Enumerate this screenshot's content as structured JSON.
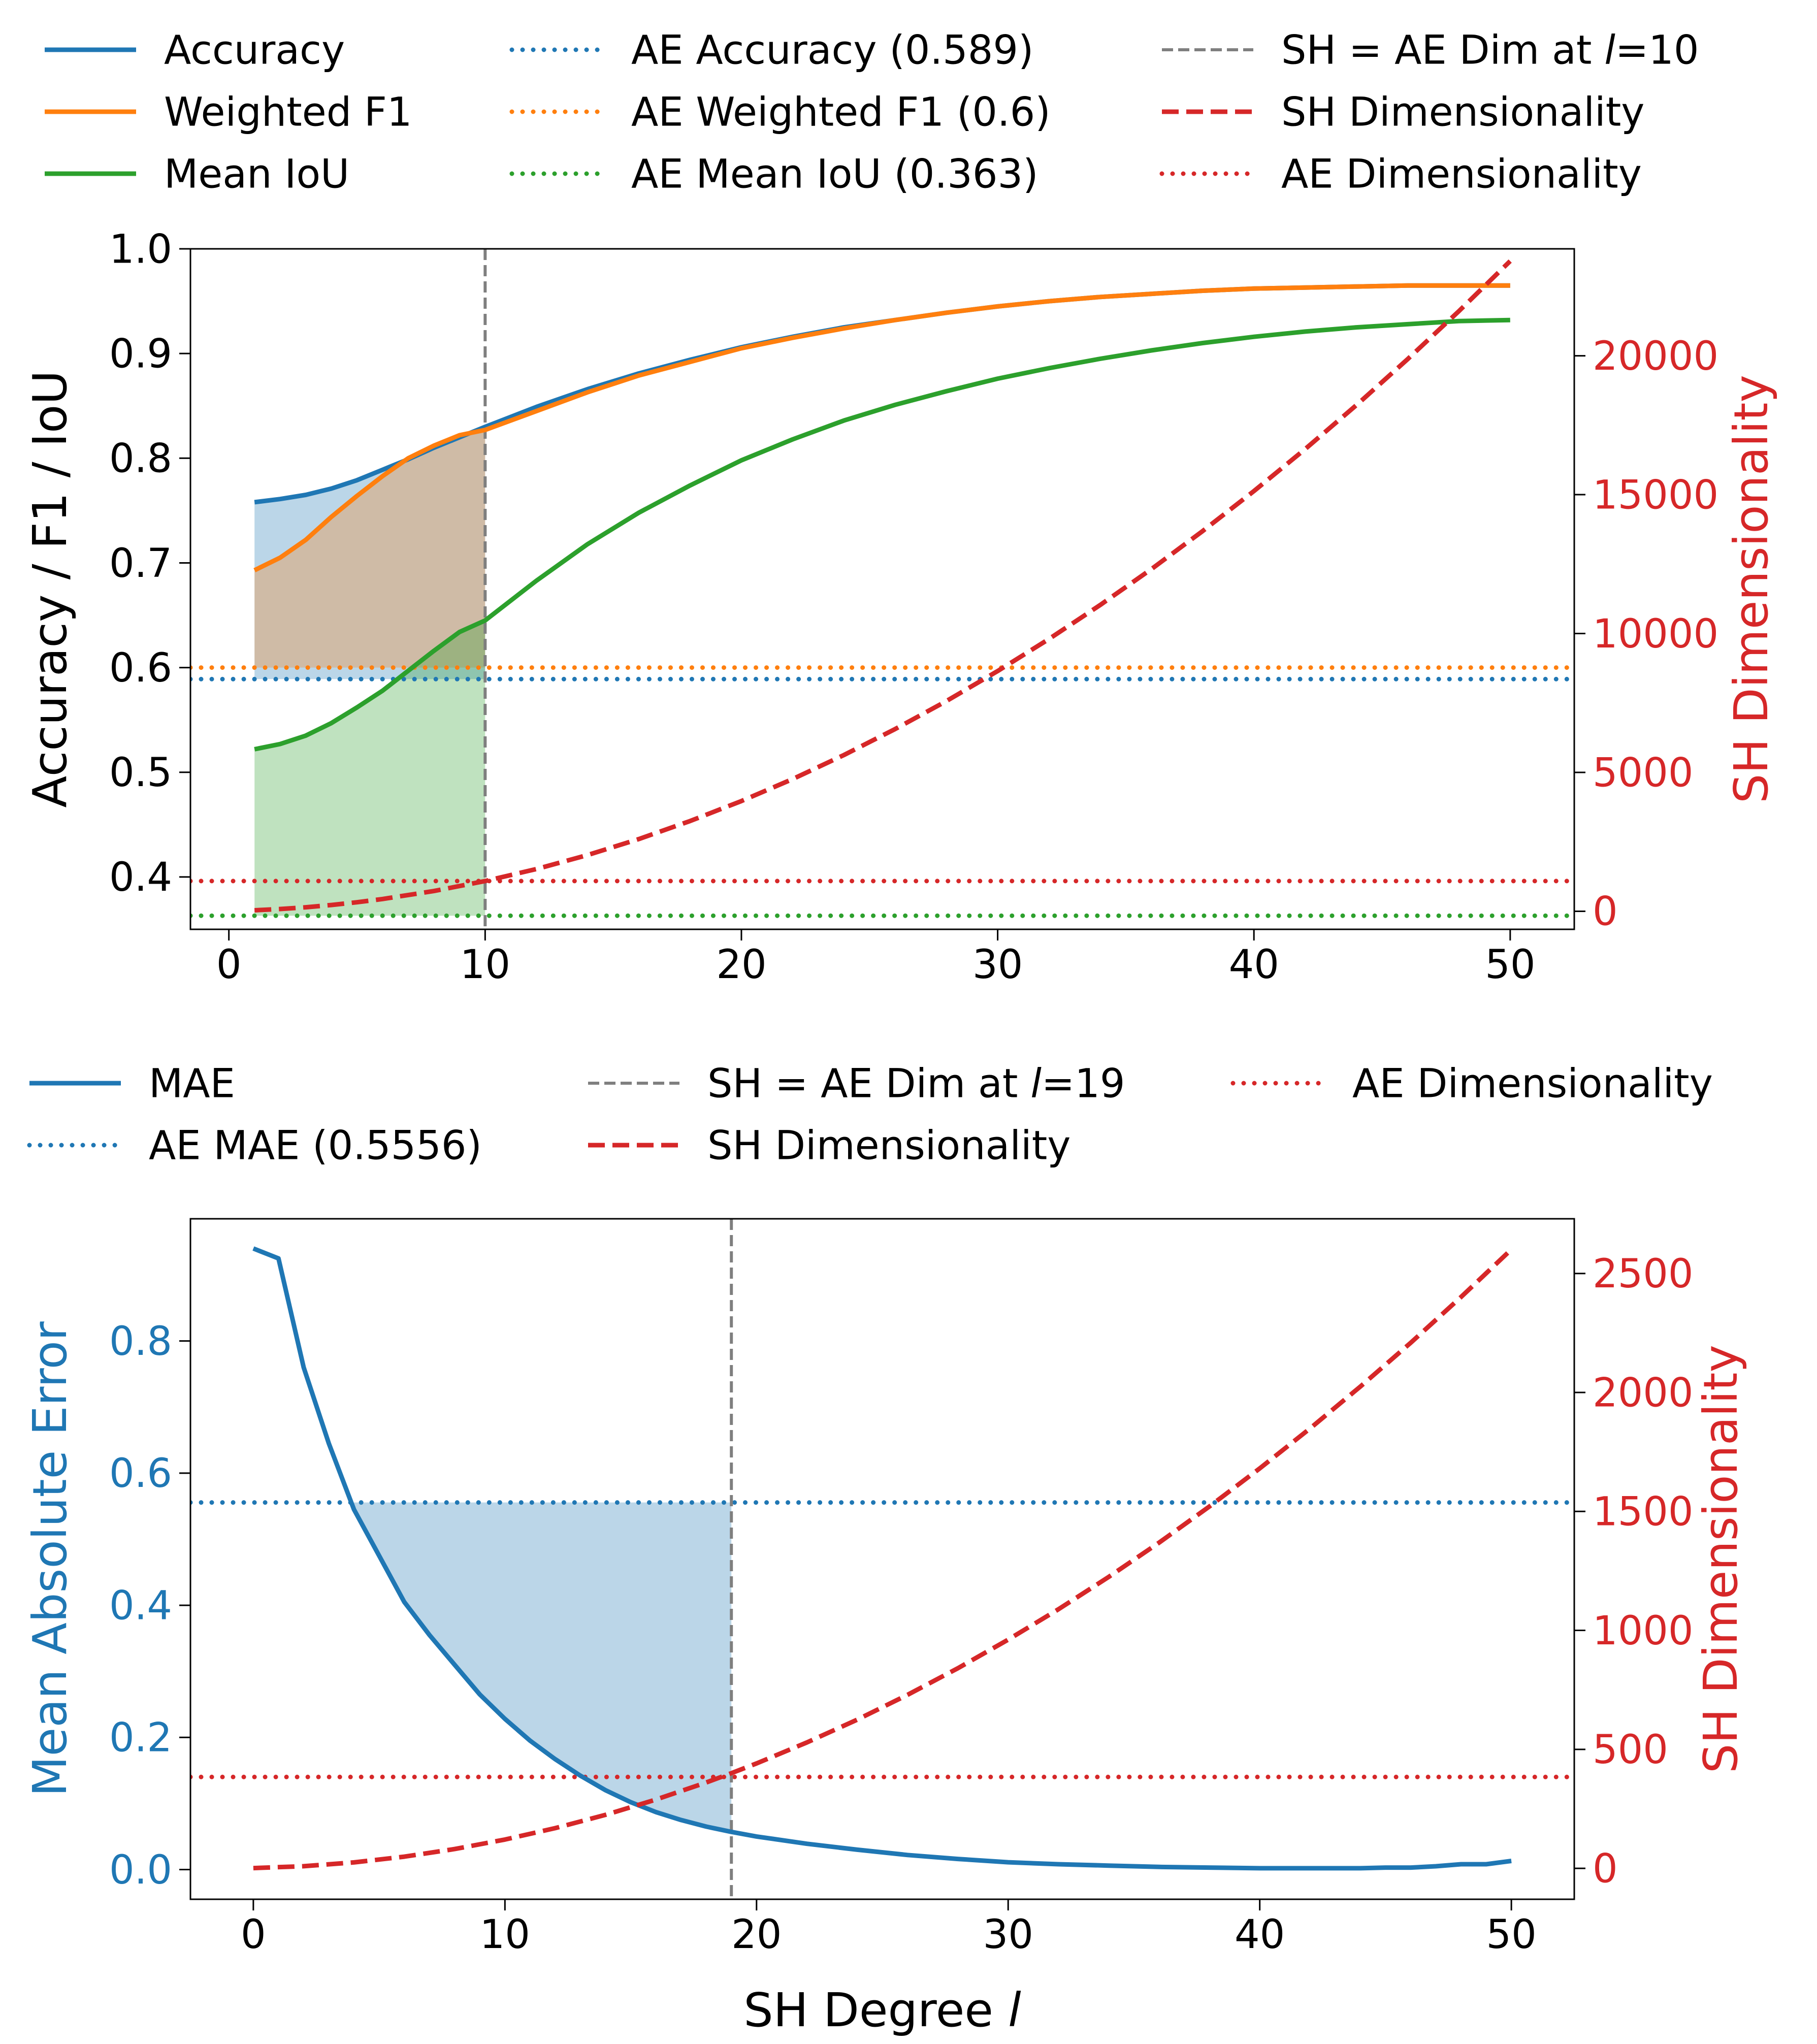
{
  "colors": {
    "blue": "#1f77b4",
    "orange": "#ff7f0e",
    "green": "#2ca02c",
    "red": "#d62728",
    "gray": "#7f7f7f",
    "black": "#000000"
  },
  "chart_data": [
    {
      "type": "line",
      "y_label": "Accuracy / F1 / IoU",
      "y2_label": "SH Dimensionality",
      "x_ticks": [
        "0",
        "10",
        "20",
        "30",
        "40",
        "50"
      ],
      "y_ticks": [
        "0.4",
        "0.5",
        "0.6",
        "0.7",
        "0.8",
        "0.9",
        "1.0"
      ],
      "y2_ticks": [
        "0",
        "5000",
        "10000",
        "15000",
        "20000"
      ],
      "xlim": [
        -1.5,
        52.5
      ],
      "ylim": [
        0.35,
        1.0
      ],
      "y2lim": [
        -650,
        23850
      ],
      "legend": {
        "placement": "top (above plot, 3 columns)",
        "entries": [
          {
            "label": "Accuracy",
            "series": "Accuracy",
            "style": "solid"
          },
          {
            "label": "Weighted F1",
            "series": "Weighted F1",
            "style": "solid"
          },
          {
            "label": "Mean IoU",
            "series": "Mean IoU",
            "style": "solid"
          },
          {
            "label": "AE Accuracy (0.589)",
            "series": "AE Accuracy",
            "style": "dotted"
          },
          {
            "label": "AE Weighted F1 (0.6)",
            "series": "AE Weighted F1",
            "style": "dotted"
          },
          {
            "label": "AE Mean IoU (0.363)",
            "series": "AE Mean IoU",
            "style": "dotted"
          },
          {
            "label_pre": "SH = AE Dim at ",
            "label_italic": "l",
            "label_post": "=10",
            "series": "SH = AE Dim",
            "style": "dashed-thin"
          },
          {
            "label": "SH Dimensionality",
            "series": "SH Dimensionality",
            "style": "dashed"
          },
          {
            "label": "AE Dimensionality",
            "series": "AE Dimensionality",
            "style": "dotted"
          }
        ]
      },
      "series": [
        {
          "name": "Accuracy",
          "color": "blue",
          "axis": "left",
          "x": [
            1,
            2,
            3,
            4,
            5,
            6,
            7,
            8,
            9,
            10,
            12,
            14,
            16,
            18,
            20,
            22,
            24,
            26,
            28,
            30,
            32,
            34,
            36,
            38,
            40,
            42,
            44,
            46,
            48,
            50
          ],
          "y": [
            0.758,
            0.761,
            0.765,
            0.771,
            0.779,
            0.789,
            0.799,
            0.81,
            0.82,
            0.83,
            0.849,
            0.866,
            0.881,
            0.894,
            0.906,
            0.916,
            0.925,
            0.932,
            0.939,
            0.945,
            0.95,
            0.954,
            0.957,
            0.96,
            0.962,
            0.963,
            0.964,
            0.965,
            0.965,
            0.965
          ]
        },
        {
          "name": "Weighted F1",
          "color": "orange",
          "axis": "left",
          "x": [
            1,
            2,
            3,
            4,
            5,
            6,
            7,
            8,
            9,
            10,
            12,
            14,
            16,
            18,
            20,
            22,
            24,
            26,
            28,
            30,
            32,
            34,
            36,
            38,
            40,
            42,
            44,
            46,
            48,
            50
          ],
          "y": [
            0.693,
            0.705,
            0.722,
            0.744,
            0.764,
            0.783,
            0.8,
            0.812,
            0.822,
            0.827,
            0.845,
            0.863,
            0.879,
            0.892,
            0.905,
            0.915,
            0.924,
            0.932,
            0.939,
            0.945,
            0.95,
            0.954,
            0.957,
            0.96,
            0.962,
            0.963,
            0.964,
            0.965,
            0.965,
            0.965
          ]
        },
        {
          "name": "Mean IoU",
          "color": "green",
          "axis": "left",
          "x": [
            1,
            2,
            3,
            4,
            5,
            6,
            7,
            8,
            9,
            10,
            12,
            14,
            16,
            18,
            20,
            22,
            24,
            26,
            28,
            30,
            32,
            34,
            36,
            38,
            40,
            42,
            44,
            46,
            48,
            50
          ],
          "y": [
            0.522,
            0.527,
            0.535,
            0.547,
            0.562,
            0.578,
            0.597,
            0.616,
            0.634,
            0.645,
            0.683,
            0.718,
            0.748,
            0.774,
            0.798,
            0.818,
            0.836,
            0.851,
            0.864,
            0.876,
            0.886,
            0.895,
            0.903,
            0.91,
            0.916,
            0.921,
            0.925,
            0.928,
            0.931,
            0.932
          ]
        },
        {
          "name": "SH Dimensionality",
          "color": "red",
          "axis": "right",
          "x": [
            1,
            2,
            3,
            4,
            5,
            6,
            8,
            10,
            12,
            14,
            16,
            18,
            20,
            22,
            24,
            26,
            28,
            30,
            32,
            34,
            36,
            38,
            40,
            42,
            44,
            46,
            48,
            50
          ],
          "y": [
            36,
            81,
            144,
            225,
            324,
            441,
            729,
            1089,
            1521,
            2025,
            2601,
            3249,
            3969,
            4761,
            5625,
            6561,
            7569,
            8649,
            9801,
            11025,
            12321,
            13689,
            15129,
            16641,
            18225,
            19881,
            21609,
            23409
          ]
        }
      ],
      "hlines": [
        {
          "name": "AE Accuracy",
          "value": 0.589,
          "axis": "left",
          "color": "blue",
          "style": "dotted"
        },
        {
          "name": "AE Weighted F1",
          "value": 0.6,
          "axis": "left",
          "color": "orange",
          "style": "dotted"
        },
        {
          "name": "AE Mean IoU",
          "value": 0.363,
          "axis": "left",
          "color": "green",
          "style": "dotted"
        },
        {
          "name": "AE Dimensionality",
          "value": 1089,
          "axis": "right",
          "color": "red",
          "style": "dotted"
        }
      ],
      "vline": {
        "name": "SH = AE Dim",
        "value": 10,
        "color": "gray",
        "style": "dashed-thin"
      },
      "fills": [
        {
          "series": "Accuracy",
          "baseline": 0.589,
          "x_to": 10,
          "color": "blue",
          "opacity": 0.3
        },
        {
          "series": "Weighted F1",
          "baseline": 0.6,
          "x_to": 10,
          "color": "orange",
          "opacity": 0.3
        },
        {
          "series": "Mean IoU",
          "baseline": 0.363,
          "x_to": 10,
          "color": "green",
          "opacity": 0.3
        }
      ]
    },
    {
      "type": "line",
      "x_label_pre": "SH Degree ",
      "x_label_italic": "l",
      "y_label": "Mean Absolute Error",
      "y2_label": "SH Dimensionality",
      "x_ticks": [
        "0",
        "10",
        "20",
        "30",
        "40",
        "50"
      ],
      "y_ticks": [
        "0.0",
        "0.2",
        "0.4",
        "0.6",
        "0.8"
      ],
      "y2_ticks": [
        "0",
        "500",
        "1000",
        "1500",
        "2000",
        "2500"
      ],
      "xlim": [
        -2.5,
        52.5
      ],
      "ylim": [
        -0.045,
        0.985
      ],
      "y2lim": [
        -130,
        2730
      ],
      "legend": {
        "placement": "top (above plot, 3 columns)",
        "entries": [
          {
            "label": "MAE",
            "series": "MAE",
            "style": "solid"
          },
          {
            "label": "AE MAE (0.5556)",
            "series": "AE MAE",
            "style": "dotted"
          },
          {
            "label_pre": "SH = AE Dim at ",
            "label_italic": "l",
            "label_post": "=19",
            "series": "SH = AE Dim",
            "style": "dashed-thin"
          },
          {
            "label": "SH Dimensionality",
            "series": "SH Dimensionality",
            "style": "dashed"
          },
          {
            "label": "AE Dimensionality",
            "series": "AE Dimensionality",
            "style": "dotted"
          }
        ]
      },
      "series": [
        {
          "name": "MAE",
          "color": "blue",
          "axis": "left",
          "x": [
            0,
            1,
            2,
            3,
            4,
            5,
            6,
            7,
            8,
            9,
            10,
            11,
            12,
            13,
            14,
            15,
            16,
            17,
            18,
            19,
            20,
            22,
            24,
            26,
            28,
            30,
            32,
            34,
            36,
            38,
            40,
            42,
            44,
            45,
            46,
            47,
            48,
            49,
            50
          ],
          "y": [
            0.94,
            0.925,
            0.76,
            0.645,
            0.545,
            0.475,
            0.405,
            0.355,
            0.31,
            0.265,
            0.228,
            0.195,
            0.167,
            0.142,
            0.12,
            0.102,
            0.087,
            0.075,
            0.065,
            0.057,
            0.05,
            0.039,
            0.03,
            0.022,
            0.016,
            0.011,
            0.008,
            0.006,
            0.004,
            0.003,
            0.002,
            0.002,
            0.002,
            0.003,
            0.003,
            0.005,
            0.008,
            0.008,
            0.013
          ]
        },
        {
          "name": "SH Dimensionality",
          "color": "red",
          "axis": "right",
          "x": [
            0,
            2,
            4,
            6,
            8,
            10,
            12,
            14,
            16,
            18,
            19,
            20,
            22,
            24,
            26,
            28,
            30,
            32,
            34,
            36,
            38,
            40,
            42,
            44,
            46,
            48,
            50
          ],
          "y": [
            1,
            9,
            25,
            49,
            81,
            121,
            169,
            225,
            289,
            361,
            400,
            441,
            529,
            625,
            729,
            841,
            961,
            1089,
            1225,
            1369,
            1521,
            1681,
            1849,
            2025,
            2209,
            2401,
            2601
          ]
        }
      ],
      "hlines": [
        {
          "name": "AE MAE",
          "value": 0.5556,
          "axis": "left",
          "color": "blue",
          "style": "dotted"
        },
        {
          "name": "AE Dimensionality",
          "value": 384,
          "axis": "right",
          "color": "red",
          "style": "dotted"
        }
      ],
      "vline": {
        "name": "SH = AE Dim",
        "value": 19,
        "color": "gray",
        "style": "dashed-thin"
      },
      "fills": [
        {
          "series": "MAE",
          "baseline": 0.5556,
          "clip": "below-baseline",
          "x_from": 4,
          "x_to": 19,
          "color": "blue",
          "opacity": 0.3
        }
      ]
    }
  ]
}
